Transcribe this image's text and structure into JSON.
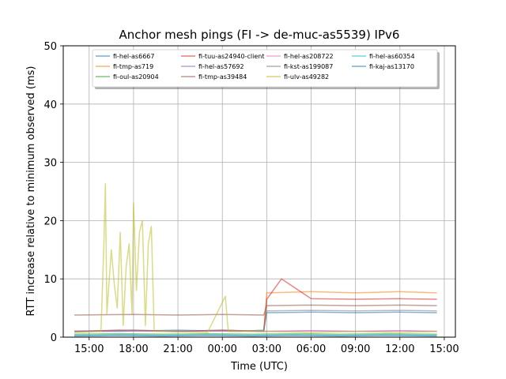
{
  "chart_data": {
    "type": "line",
    "title": "Anchor mesh pings (FI -> de-muc-as5539) IPv6",
    "xlabel": "Time (UTC)",
    "ylabel": "RTT increase relative to minimum observed (ms)",
    "ylim": [
      0,
      50
    ],
    "xlim": [
      -1.75,
      24.75
    ],
    "yticks": [
      0,
      10,
      20,
      30,
      40,
      50
    ],
    "xticks": [
      {
        "hours": 0,
        "label": "15:00"
      },
      {
        "hours": 3,
        "label": "18:00"
      },
      {
        "hours": 6,
        "label": "21:00"
      },
      {
        "hours": 9,
        "label": "00:00"
      },
      {
        "hours": 12,
        "label": "03:00"
      },
      {
        "hours": 15,
        "label": "06:00"
      },
      {
        "hours": 18,
        "label": "09:00"
      },
      {
        "hours": 21,
        "label": "12:00"
      },
      {
        "hours": 24,
        "label": "15:00"
      }
    ],
    "x_unit": "hours since 15:00 UTC",
    "grid": true,
    "legend_position": "top",
    "series": [
      {
        "name": "fi-hel-as6667",
        "color": "#1f77b4",
        "points": [
          [
            -1,
            1.0
          ],
          [
            2,
            1.0
          ],
          [
            6,
            1.2
          ],
          [
            10,
            1.0
          ],
          [
            11.8,
            1.2
          ],
          [
            12,
            4.2
          ],
          [
            15,
            4.3
          ],
          [
            18,
            4.2
          ],
          [
            21,
            4.3
          ],
          [
            23.5,
            4.2
          ]
        ]
      },
      {
        "name": "fi-tmp-as719",
        "color": "#ff7f0e",
        "points": [
          [
            -1,
            1.0
          ],
          [
            3,
            1.2
          ],
          [
            6,
            1.0
          ],
          [
            9,
            1.1
          ],
          [
            11.8,
            1.0
          ],
          [
            12,
            7.6
          ],
          [
            15,
            7.8
          ],
          [
            18,
            7.6
          ],
          [
            21,
            7.8
          ],
          [
            23.5,
            7.6
          ]
        ]
      },
      {
        "name": "fi-oul-as20904",
        "color": "#2ca02c",
        "points": [
          [
            -1,
            0.5
          ],
          [
            2,
            0.6
          ],
          [
            5,
            0.5
          ],
          [
            8,
            0.6
          ],
          [
            11,
            0.5
          ],
          [
            14,
            0.6
          ],
          [
            17,
            0.5
          ],
          [
            20,
            0.6
          ],
          [
            23.5,
            0.5
          ]
        ]
      },
      {
        "name": "fi-tuu-as24940-client",
        "color": "#d62728",
        "points": [
          [
            -1,
            1.0
          ],
          [
            2,
            1.2
          ],
          [
            6,
            1.0
          ],
          [
            9,
            1.2
          ],
          [
            11.8,
            1.0
          ],
          [
            12,
            6.5
          ],
          [
            13,
            10.0
          ],
          [
            15,
            6.6
          ],
          [
            18,
            6.5
          ],
          [
            21,
            6.6
          ],
          [
            23.5,
            6.5
          ]
        ]
      },
      {
        "name": "fi-hel-as57692",
        "color": "#9467bd",
        "points": [
          [
            -1,
            1.0
          ],
          [
            3,
            1.1
          ],
          [
            6,
            1.0
          ],
          [
            9,
            1.1
          ],
          [
            12,
            1.0
          ],
          [
            15,
            1.1
          ],
          [
            18,
            1.0
          ],
          [
            21,
            1.1
          ],
          [
            23.5,
            1.0
          ]
        ]
      },
      {
        "name": "fi-tmp-as39484",
        "color": "#8c564b",
        "points": [
          [
            -1,
            3.8
          ],
          [
            3,
            3.9
          ],
          [
            6,
            3.8
          ],
          [
            9,
            3.9
          ],
          [
            11.8,
            3.8
          ],
          [
            12,
            5.4
          ],
          [
            15,
            5.5
          ],
          [
            18,
            5.4
          ],
          [
            21,
            5.5
          ],
          [
            23.5,
            5.4
          ]
        ]
      },
      {
        "name": "fi-hel-as208722",
        "color": "#e377c2",
        "points": [
          [
            -1,
            1.0
          ],
          [
            3,
            1.1
          ],
          [
            6,
            1.0
          ],
          [
            9,
            1.1
          ],
          [
            12,
            1.0
          ],
          [
            15,
            1.1
          ],
          [
            18,
            1.0
          ],
          [
            21,
            1.1
          ],
          [
            23.5,
            1.0
          ]
        ]
      },
      {
        "name": "fi-kst-as199087",
        "color": "#7f7f7f",
        "points": [
          [
            -1,
            1.0
          ],
          [
            3,
            1.2
          ],
          [
            6,
            1.0
          ],
          [
            9,
            1.2
          ],
          [
            11.8,
            1.0
          ],
          [
            12,
            4.5
          ],
          [
            15,
            4.6
          ],
          [
            18,
            4.5
          ],
          [
            21,
            4.6
          ],
          [
            23.5,
            4.5
          ]
        ]
      },
      {
        "name": "fi-ulv-as49282",
        "color": "#bcbd22",
        "points": [
          [
            -1,
            0.8
          ],
          [
            0.8,
            1.0
          ],
          [
            1,
            16.5
          ],
          [
            1.1,
            26.3
          ],
          [
            1.2,
            4.0
          ],
          [
            1.5,
            15.0
          ],
          [
            1.7,
            9.0
          ],
          [
            1.9,
            5.0
          ],
          [
            2.1,
            18.0
          ],
          [
            2.3,
            2.0
          ],
          [
            2.5,
            12.0
          ],
          [
            2.7,
            16.0
          ],
          [
            2.9,
            4.0
          ],
          [
            3.0,
            23.0
          ],
          [
            3.2,
            8.0
          ],
          [
            3.4,
            18.0
          ],
          [
            3.6,
            20.0
          ],
          [
            3.8,
            2.0
          ],
          [
            4.0,
            16.0
          ],
          [
            4.2,
            19.0
          ],
          [
            4.4,
            1.0
          ],
          [
            5,
            1.0
          ],
          [
            8,
            0.8
          ],
          [
            9.2,
            7.0
          ],
          [
            9.4,
            1.0
          ],
          [
            12,
            1.0
          ],
          [
            15,
            0.8
          ],
          [
            18,
            1.0
          ],
          [
            21,
            0.8
          ],
          [
            23.5,
            1.0
          ]
        ]
      },
      {
        "name": "fi-hel-as60354",
        "color": "#17becf",
        "points": [
          [
            -1,
            0.3
          ],
          [
            2,
            0.4
          ],
          [
            5,
            0.3
          ],
          [
            8,
            0.4
          ],
          [
            11,
            0.3
          ],
          [
            14,
            0.4
          ],
          [
            17,
            0.3
          ],
          [
            20,
            0.4
          ],
          [
            23.5,
            0.3
          ]
        ]
      },
      {
        "name": "fi-kaj-as13170",
        "color": "#1f77b4",
        "points": [
          [
            -1,
            0.2
          ],
          [
            2,
            0.3
          ],
          [
            5,
            0.2
          ],
          [
            8,
            0.3
          ],
          [
            11,
            0.2
          ],
          [
            14,
            0.3
          ],
          [
            17,
            0.2
          ],
          [
            20,
            0.3
          ],
          [
            23.5,
            0.2
          ]
        ]
      }
    ]
  }
}
